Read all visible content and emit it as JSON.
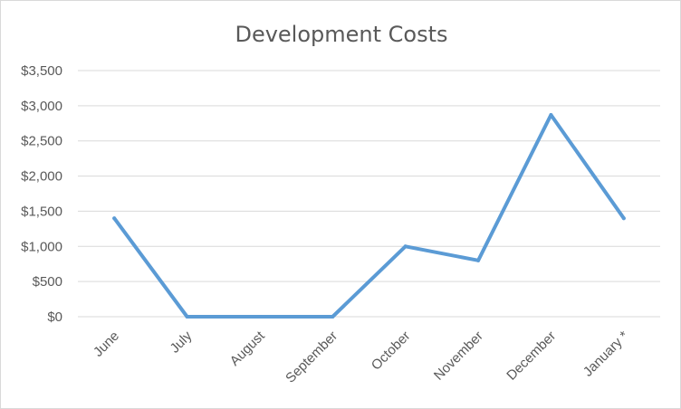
{
  "chart_data": {
    "type": "line",
    "title": "Development Costs",
    "xlabel": "",
    "ylabel": "",
    "categories": [
      "June",
      "July",
      "August",
      "September",
      "October",
      "November",
      "December",
      "January *"
    ],
    "series": [
      {
        "values": [
          1400,
          0,
          0,
          0,
          1000,
          800,
          2870,
          1400
        ],
        "color": "#5b9bd5"
      }
    ],
    "ylim": [
      0,
      3500
    ],
    "yticks": [
      0,
      500,
      1000,
      1500,
      2000,
      2500,
      3000,
      3500
    ],
    "ytick_labels": [
      "$0",
      "$500",
      "$1,000",
      "$1,500",
      "$2,000",
      "$2,500",
      "$3,000",
      "$3,500"
    ],
    "grid": true,
    "legend": "none",
    "gridline_color": "#d9d9d9",
    "text_color": "#595959"
  }
}
